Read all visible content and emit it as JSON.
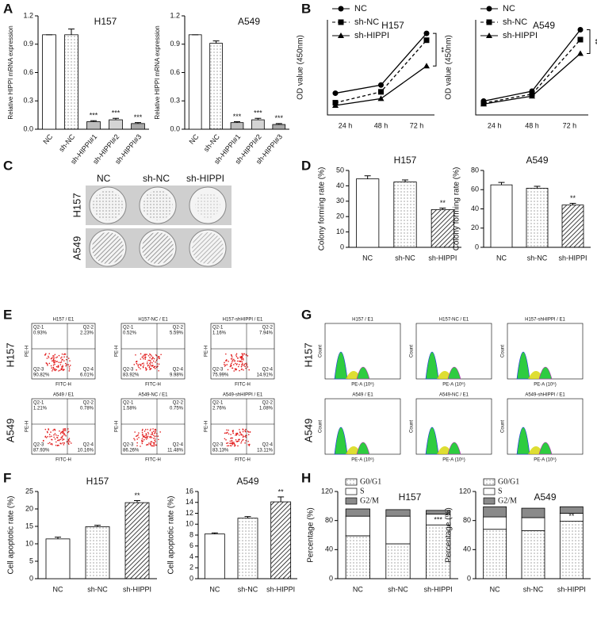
{
  "panels": [
    "A",
    "B",
    "C",
    "D",
    "E",
    "F",
    "G",
    "H"
  ],
  "chart_data": [
    {
      "type": "bar",
      "title": "H157",
      "y_label": "Relative HIPPI mRNA expression",
      "categories": [
        "NC",
        "sh-NC",
        "sh-HIPPI#1",
        "sh-HIPPI#2",
        "sh-HIPPI#3"
      ],
      "values": [
        1.0,
        1.0,
        0.08,
        0.1,
        0.06
      ],
      "errors": [
        0,
        0.06,
        0.01,
        0.015,
        0.01
      ],
      "colors": [
        "#ffffff",
        "#e4e4e4",
        "#bdbdbd",
        "#d4d4d4",
        "#a8a8a8"
      ],
      "significance": [
        null,
        null,
        "***",
        "***",
        "***"
      ],
      "ylim": [
        0,
        1.2
      ],
      "yticks": [
        {
          "value": 0,
          "label": "0.0"
        },
        0.3,
        0.6,
        0.9,
        1.2
      ]
    },
    {
      "type": "bar",
      "title": "A549",
      "y_label": "Relative HIPPI mRNA expression",
      "categories": [
        "NC",
        "sh-NC",
        "sh-HIPPI#1",
        "sh-HIPPI#2",
        "sh-HIPPI#3"
      ],
      "values": [
        1.0,
        0.91,
        0.07,
        0.1,
        0.05
      ],
      "errors": [
        0,
        0.025,
        0.01,
        0.015,
        0.01
      ],
      "colors": [
        "#ffffff",
        "#e4e4e4",
        "#bdbdbd",
        "#d4d4d4",
        "#a8a8a8"
      ],
      "significance": [
        null,
        null,
        "***",
        "***",
        "***"
      ],
      "ylim": [
        0,
        1.2
      ],
      "yticks": [
        {
          "value": 0,
          "label": "0.0"
        },
        0.3,
        0.6,
        0.9,
        1.2
      ]
    },
    {
      "type": "line",
      "title": "H157",
      "y_label": "OD value (450nm)",
      "legend": "upper left",
      "categories": [
        "24 h",
        "48 h",
        "72 h"
      ],
      "significance": "**",
      "series": [
        {
          "name": "NC",
          "color": "#000000",
          "marker": "circle",
          "dash": false,
          "values": [
            0.8,
            1.1,
            3.0
          ]
        },
        {
          "name": "sh-NC",
          "color": "#000000",
          "marker": "square",
          "dash": true,
          "values": [
            0.45,
            0.85,
            2.75
          ]
        },
        {
          "name": "sh-HIPPI",
          "color": "#000000",
          "marker": "triangle",
          "dash": false,
          "values": [
            0.35,
            0.6,
            1.8
          ]
        }
      ],
      "ylim": [
        0,
        3.5
      ]
    },
    {
      "type": "line",
      "title": "A549",
      "y_label": "OD value (450nm)",
      "legend": "upper left",
      "categories": [
        "24 h",
        "48 h",
        "72 h"
      ],
      "significance": "**",
      "series": [
        {
          "name": "NC",
          "color": "#000000",
          "marker": "circle",
          "dash": false,
          "values": [
            0.7,
            1.2,
            4.3
          ]
        },
        {
          "name": "sh-NC",
          "color": "#000000",
          "marker": "square",
          "dash": true,
          "values": [
            0.6,
            1.05,
            3.8
          ]
        },
        {
          "name": "sh-HIPPI",
          "color": "#000000",
          "marker": "triangle",
          "dash": false,
          "values": [
            0.55,
            0.95,
            3.1
          ]
        }
      ],
      "ylim": [
        0,
        4.8
      ]
    },
    {
      "type": "bar",
      "title": "H157",
      "y_label": "Colony forming rate (%)",
      "categories": [
        "NC",
        "sh-NC",
        "sh-HIPPI"
      ],
      "values": [
        44.5,
        42.5,
        24.5
      ],
      "errors": [
        2,
        1.3,
        1
      ],
      "colors": [
        "#ffffff",
        "#e4e4e4",
        "#555555"
      ],
      "significance": [
        null,
        null,
        "**"
      ],
      "ylim": [
        0,
        50
      ],
      "yticks": [
        0,
        10,
        20,
        30,
        40,
        50
      ]
    },
    {
      "type": "bar",
      "title": "A549",
      "y_label": "Colony forming rate (%)",
      "categories": [
        "NC",
        "sh-NC",
        "sh-HIPPI"
      ],
      "values": [
        65,
        61.5,
        44
      ],
      "errors": [
        2.5,
        2,
        1.8
      ],
      "colors": [
        "#ffffff",
        "#e4e4e4",
        "#555555"
      ],
      "significance": [
        null,
        null,
        "**"
      ],
      "ylim": [
        0,
        80
      ],
      "yticks": [
        0,
        20,
        40,
        60,
        80
      ]
    },
    {
      "type": "bar",
      "title": "H157",
      "y_label": "Cell apoptotic rate (%)",
      "categories": [
        "NC",
        "sh-NC",
        "sh-HIPPI"
      ],
      "values": [
        11.4,
        14.9,
        21.8
      ],
      "errors": [
        0.5,
        0.4,
        0.6
      ],
      "colors": [
        "#ffffff",
        "#e4e4e4",
        "#555555"
      ],
      "significance": [
        null,
        null,
        "**"
      ],
      "ylim": [
        0,
        25
      ],
      "yticks": [
        0,
        5,
        10,
        15,
        20,
        25
      ]
    },
    {
      "type": "bar",
      "title": "A549",
      "y_label": "Cell apoptotic rate (%)",
      "categories": [
        "NC",
        "sh-NC",
        "sh-HIPPI"
      ],
      "values": [
        8.2,
        11.1,
        14.1
      ],
      "errors": [
        0.2,
        0.3,
        0.9
      ],
      "colors": [
        "#ffffff",
        "#e4e4e4",
        "#555555"
      ],
      "significance": [
        null,
        null,
        "**"
      ],
      "ylim": [
        0,
        16
      ],
      "yticks": [
        0,
        2,
        4,
        6,
        8,
        10,
        12,
        14,
        16
      ]
    },
    {
      "type": "stacked_bar",
      "title": "H157",
      "y_label": "Percentage (%)",
      "legend": "upper left",
      "categories": [
        "NC",
        "sh-NC",
        "sh-HIPPI"
      ],
      "significance": [
        null,
        null,
        "***"
      ],
      "series": [
        {
          "name": "G0/G1",
          "color": "#eeeeee",
          "values": [
            59,
            48,
            74
          ]
        },
        {
          "name": "S",
          "color": "#ffffff",
          "values": [
            27,
            38,
            15
          ]
        },
        {
          "name": "G2/M",
          "color": "#8a8a8a",
          "values": [
            10,
            9,
            5
          ]
        }
      ],
      "ylim": [
        0,
        120
      ],
      "yticks": [
        0,
        40,
        80,
        120
      ]
    },
    {
      "type": "stacked_bar",
      "title": "A549",
      "y_label": "Percentage (%)",
      "legend": "upper left",
      "categories": [
        "NC",
        "sh-NC",
        "sh-HIPPI"
      ],
      "significance": [
        null,
        null,
        "**"
      ],
      "series": [
        {
          "name": "G0/G1",
          "color": "#eeeeee",
          "values": [
            68,
            66,
            79
          ]
        },
        {
          "name": "S",
          "color": "#ffffff",
          "values": [
            17,
            18,
            11
          ]
        },
        {
          "name": "G2/M",
          "color": "#8a8a8a",
          "values": [
            14,
            13,
            9
          ]
        }
      ],
      "ylim": [
        0,
        120
      ],
      "yticks": [
        0,
        40,
        80,
        120
      ]
    }
  ],
  "colony_assay": {
    "columns": [
      "NC",
      "sh-NC",
      "sh-HIPPI"
    ],
    "rows": [
      "H157",
      "A549"
    ]
  },
  "flow_cytometry": {
    "rows": [
      "H157",
      "A549"
    ],
    "x_label": "FITC-H",
    "y_label": "PE-H",
    "quadrant_names": [
      "Q2-1",
      "Q2-2",
      "Q2-3",
      "Q2-4"
    ],
    "plots": [
      {
        "title": "H157 / E1",
        "percentages": [
          "0.93%",
          "2.23%",
          "90.82%",
          "6.01%"
        ]
      },
      {
        "title": "H157-NC / E1",
        "percentages": [
          "0.52%",
          "5.59%",
          "83.92%",
          "9.98%"
        ]
      },
      {
        "title": "H157-shHIPPI / E1",
        "percentages": [
          "1.16%",
          "7.94%",
          "75.99%",
          "14.91%"
        ]
      },
      {
        "title": "A549 / E1",
        "percentages": [
          "1.21%",
          "0.78%",
          "87.93%",
          "10.16%"
        ]
      },
      {
        "title": "A549-NC / E1",
        "percentages": [
          "1.58%",
          "0.75%",
          "86.26%",
          "11.48%"
        ]
      },
      {
        "title": "A549-shHIPPI / E1",
        "percentages": [
          "2.76%",
          "1.08%",
          "83.13%",
          "13.11%"
        ]
      }
    ]
  },
  "cell_cycle": {
    "rows": [
      "H157",
      "A549"
    ],
    "x_label": "PE-A (10⁶)",
    "y_label": "Count",
    "titles": [
      "H157 / E1",
      "H157-NC / E1",
      "H157-shHIPPI / E1",
      "A549 / E1",
      "A549-NC / E1",
      "A549-shHIPPI / E1"
    ]
  }
}
